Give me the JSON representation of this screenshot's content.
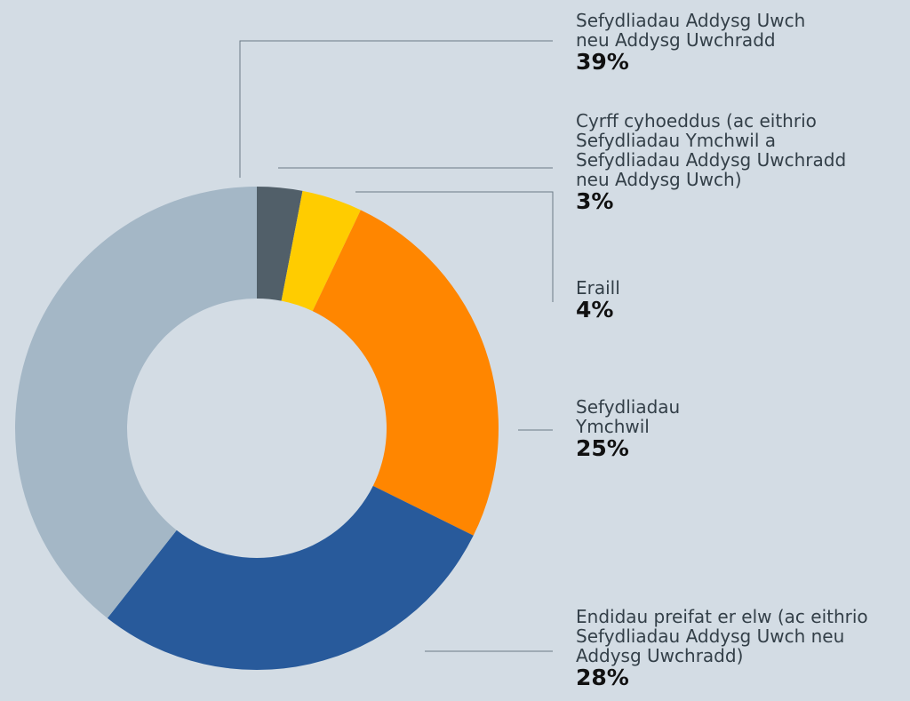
{
  "chart_data": {
    "type": "donut",
    "categories": [
      "Cyrff cyhoeddus (ac eithrio\nSefydliadau Ymchwil a\nSefydliadau Addysg Uwchradd\nneu Addysg Uwch)",
      "Eraill",
      "Sefydliadau\nYmchwil",
      "Endidau preifat er elw (ac eithrio\nSefydliadau Addysg Uwch neu\nAddysg Uwchradd)",
      "Sefydliadau Addysg Uwch\nneu Addysg Uwchradd"
    ],
    "values": [
      3,
      4,
      25,
      28,
      39
    ],
    "value_labels": [
      "3%",
      "4%",
      "25%",
      "28%",
      "39%"
    ],
    "colors": [
      "#515f69",
      "#ffcc00",
      "#ff8600",
      "#285a9b",
      "#a4b7c6"
    ]
  }
}
